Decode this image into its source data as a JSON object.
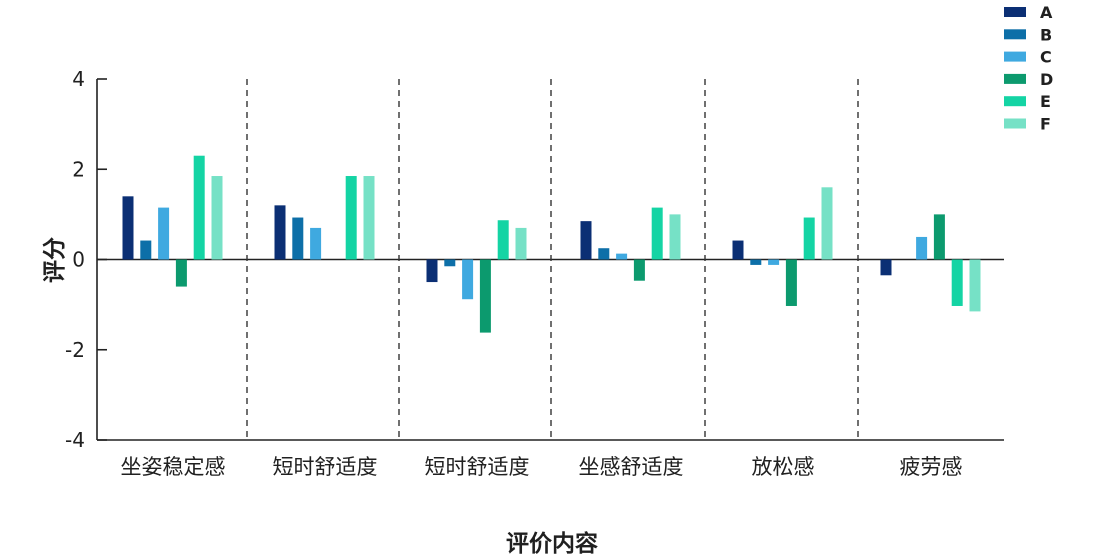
{
  "chart_data": {
    "type": "bar",
    "title": "",
    "xlabel": "评价内容",
    "ylabel": "评分",
    "ylim": [
      -4,
      4
    ],
    "yticks": [
      4,
      2,
      0,
      -2,
      -4
    ],
    "ytick_labels": [
      "4",
      "2",
      "0",
      "-2",
      "-4"
    ],
    "grid": false,
    "category_separators": "dashed vertical lines",
    "legend_position": "top-right",
    "categories": [
      "坐姿稳定感",
      "短时舒适度",
      "短时舒适度",
      "坐感舒适度",
      "放松感",
      "疲劳感"
    ],
    "series": [
      {
        "name": "A",
        "color": "#0b2f74",
        "values": [
          1.4,
          1.2,
          -0.5,
          0.85,
          0.42,
          -0.35
        ]
      },
      {
        "name": "B",
        "color": "#0d6fa8",
        "values": [
          0.42,
          0.93,
          -0.15,
          0.25,
          -0.12,
          0.0
        ]
      },
      {
        "name": "C",
        "color": "#3fa9e0",
        "values": [
          1.15,
          0.7,
          -0.88,
          0.13,
          -0.12,
          0.5
        ]
      },
      {
        "name": "D",
        "color": "#0c9a6e",
        "values": [
          -0.6,
          0.0,
          -1.62,
          -0.47,
          -1.03,
          1.0
        ]
      },
      {
        "name": "E",
        "color": "#14d4a4",
        "values": [
          2.3,
          1.85,
          0.87,
          1.15,
          0.93,
          -1.03
        ]
      },
      {
        "name": "F",
        "color": "#76e1c6",
        "values": [
          1.85,
          1.85,
          0.7,
          1.0,
          1.6,
          -1.15
        ]
      }
    ]
  }
}
